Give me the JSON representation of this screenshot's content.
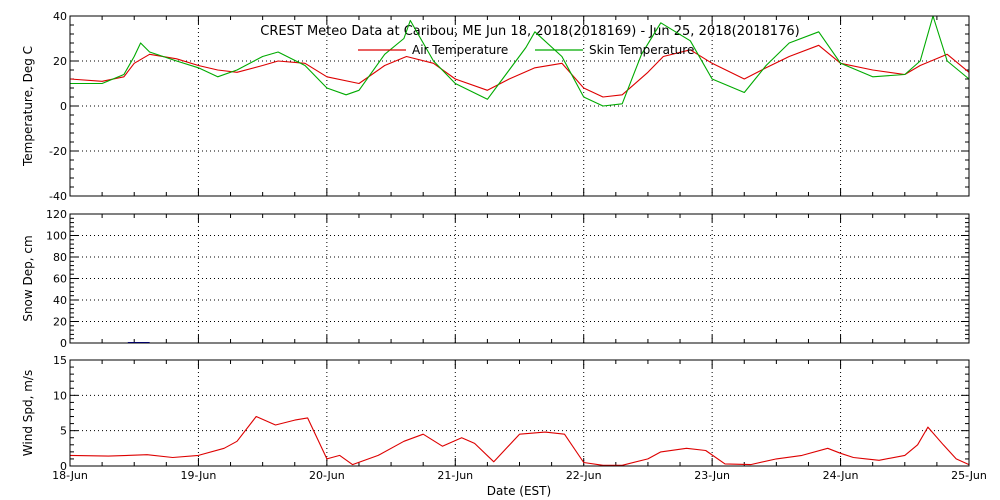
{
  "chart_data": {
    "title": "CREST Meteo Data at Caribou, ME   Jun 18, 2018(2018169) - Jun 25, 2018(2018176)",
    "xlabel": "Date (EST)",
    "x_ticks": [
      "18-Jun",
      "19-Jun",
      "20-Jun",
      "21-Jun",
      "22-Jun",
      "23-Jun",
      "24-Jun",
      "25-Jun"
    ],
    "panels": [
      {
        "type": "line",
        "ylabel": "Temperature, Deg C",
        "ylim": [
          -40,
          40
        ],
        "y_ticks": [
          -40,
          -20,
          0,
          20,
          40
        ],
        "grid": true,
        "legend_position": "top-center",
        "series": [
          {
            "name": "Air Temperature",
            "color": "#dd0000",
            "x": [
              0,
              0.25,
              0.42,
              0.5,
              0.62,
              0.83,
              1.0,
              1.15,
              1.3,
              1.5,
              1.62,
              1.83,
              2.0,
              2.25,
              2.45,
              2.62,
              2.83,
              3.0,
              3.25,
              3.42,
              3.62,
              3.83,
              4.0,
              4.15,
              4.3,
              4.5,
              4.62,
              4.83,
              5.0,
              5.25,
              5.42,
              5.6,
              5.83,
              6.0,
              6.25,
              6.5,
              6.62,
              6.83,
              7.0
            ],
            "y": [
              12,
              11,
              13,
              19,
              23,
              21,
              18,
              16,
              15,
              18,
              20,
              19,
              13,
              10,
              18,
              22,
              19,
              12,
              7,
              12,
              17,
              19,
              8,
              4,
              5,
              15,
              22,
              25,
              19,
              12,
              17,
              22,
              27,
              19,
              16,
              14,
              18,
              23,
              15
            ]
          },
          {
            "name": "Skin Temperature",
            "color": "#00aa00",
            "x": [
              0,
              0.25,
              0.42,
              0.5,
              0.55,
              0.62,
              0.83,
              1.0,
              1.15,
              1.3,
              1.5,
              1.62,
              1.83,
              2.0,
              2.15,
              2.25,
              2.45,
              2.6,
              2.65,
              2.83,
              3.0,
              3.25,
              3.42,
              3.55,
              3.62,
              3.83,
              4.0,
              4.15,
              4.3,
              4.45,
              4.6,
              4.83,
              5.0,
              5.25,
              5.42,
              5.6,
              5.83,
              6.0,
              6.25,
              6.5,
              6.62,
              6.72,
              6.83,
              7.0
            ],
            "y": [
              10,
              10,
              14,
              22,
              28,
              24,
              20,
              17,
              13,
              16,
              22,
              24,
              18,
              8,
              5,
              7,
              23,
              30,
              38,
              20,
              10,
              3,
              16,
              26,
              33,
              22,
              4,
              0,
              1,
              23,
              37,
              29,
              12,
              6,
              18,
              28,
              33,
              19,
              13,
              14,
              20,
              40,
              20,
              12
            ]
          }
        ]
      },
      {
        "type": "line",
        "ylabel": "Snow Dep, cm",
        "ylim": [
          0,
          120
        ],
        "y_ticks": [
          0,
          20,
          40,
          60,
          80,
          100,
          120
        ],
        "grid": true,
        "series": [
          {
            "color": "#0000cc",
            "x": [
              0.45,
              0.62
            ],
            "y": [
              0.5,
              0.5
            ]
          }
        ]
      },
      {
        "type": "line",
        "ylabel": "Wind Spd, m/s",
        "ylim": [
          0,
          15
        ],
        "y_ticks": [
          0,
          5,
          10,
          15
        ],
        "grid": true,
        "series": [
          {
            "color": "#dd0000",
            "x": [
              0,
              0.3,
              0.6,
              0.8,
              1.0,
              1.2,
              1.3,
              1.45,
              1.6,
              1.75,
              1.85,
              2.0,
              2.1,
              2.2,
              2.4,
              2.6,
              2.75,
              2.9,
              3.05,
              3.15,
              3.3,
              3.5,
              3.7,
              3.85,
              4.0,
              4.15,
              4.3,
              4.5,
              4.6,
              4.8,
              4.95,
              5.1,
              5.3,
              5.5,
              5.7,
              5.9,
              6.0,
              6.1,
              6.2,
              6.3,
              6.5,
              6.6,
              6.68,
              6.8,
              6.9,
              7.0
            ],
            "y": [
              1.5,
              1.4,
              1.6,
              1.2,
              1.5,
              2.5,
              3.5,
              7.0,
              5.8,
              6.5,
              6.8,
              1.0,
              1.5,
              0.2,
              1.5,
              3.5,
              4.5,
              2.8,
              4.0,
              3.2,
              0.6,
              4.5,
              4.8,
              4.5,
              0.5,
              0.1,
              0.1,
              1.0,
              2.0,
              2.5,
              2.2,
              0.3,
              0.2,
              1.0,
              1.5,
              2.5,
              1.8,
              1.2,
              1.0,
              0.8,
              1.5,
              3.0,
              5.5,
              3.0,
              1.0,
              0.2
            ]
          }
        ]
      }
    ]
  }
}
